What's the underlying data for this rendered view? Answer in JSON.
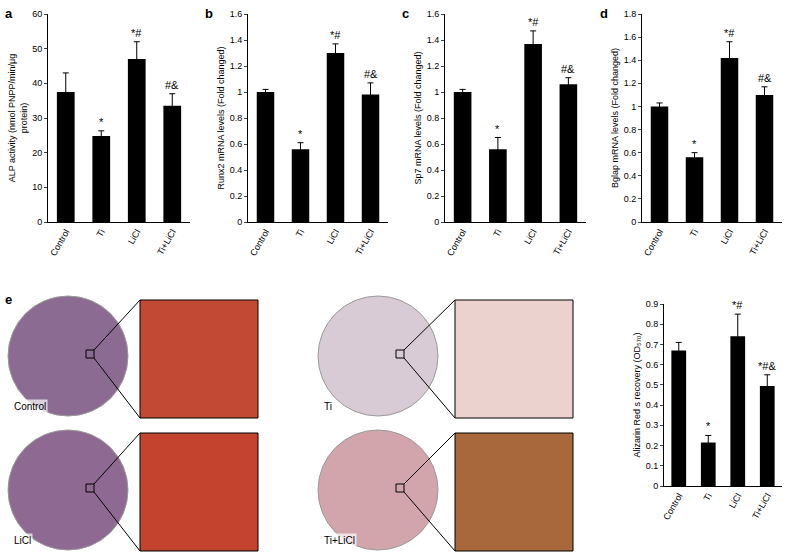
{
  "chart_data": [
    {
      "panel": "a",
      "type": "bar",
      "color": "#000000",
      "grid": false,
      "y_label_lines": [
        "ALP activity (nmol PNPP/min/μg",
        "protein)"
      ],
      "categories": [
        "Control",
        "Ti",
        "LiCl",
        "Ti+LiCl"
      ],
      "values": [
        37.5,
        24.8,
        47,
        33.5
      ],
      "errors": [
        5.5,
        1.5,
        5,
        3.5
      ],
      "significance": [
        null,
        "*",
        "*#",
        "#&"
      ],
      "ylim": [
        0,
        60
      ],
      "yticks": [
        0,
        10,
        20,
        30,
        40,
        50,
        60
      ]
    },
    {
      "panel": "b",
      "type": "bar",
      "color": "#000000",
      "grid": false,
      "y_label_lines": [
        "Runx2 mRNA levels (Fold changed)"
      ],
      "categories": [
        "Control",
        "Ti",
        "LiCl",
        "Ti+LiCl"
      ],
      "values": [
        1.0,
        0.56,
        1.3,
        0.98
      ],
      "errors": [
        0.02,
        0.05,
        0.07,
        0.09
      ],
      "significance": [
        null,
        "*",
        "*#",
        "#&"
      ],
      "ylim": [
        0,
        1.6
      ],
      "yticks": [
        0,
        0.2,
        0.4,
        0.6,
        0.8,
        1,
        1.2,
        1.4,
        1.6
      ]
    },
    {
      "panel": "c",
      "type": "bar",
      "color": "#000000",
      "grid": false,
      "y_label_lines": [
        "Sp7 mRNA levels (Fold changed)"
      ],
      "categories": [
        "Control",
        "Ti",
        "LiCl",
        "Ti+LiCl"
      ],
      "values": [
        1.0,
        0.56,
        1.37,
        1.06
      ],
      "errors": [
        0.02,
        0.09,
        0.1,
        0.05
      ],
      "significance": [
        null,
        "*",
        "*#",
        "#&"
      ],
      "ylim": [
        0,
        1.6
      ],
      "yticks": [
        0,
        0.2,
        0.4,
        0.6,
        0.8,
        1,
        1.2,
        1.4,
        1.6
      ]
    },
    {
      "panel": "d",
      "type": "bar",
      "color": "#000000",
      "grid": false,
      "y_label_lines": [
        "Bglap mRNA levels (Fold changed)"
      ],
      "categories": [
        "Control",
        "Ti",
        "LiCl",
        "Ti+LiCl"
      ],
      "values": [
        1.0,
        0.56,
        1.42,
        1.1
      ],
      "errors": [
        0.03,
        0.04,
        0.14,
        0.07
      ],
      "significance": [
        null,
        "*",
        "*#",
        "#&"
      ],
      "ylim": [
        0,
        1.8
      ],
      "yticks": [
        0,
        0.2,
        0.4,
        0.6,
        0.8,
        1,
        1.2,
        1.4,
        1.6,
        1.8
      ]
    },
    {
      "panel": "e",
      "type": "bar",
      "color": "#000000",
      "grid": false,
      "y_label_lines": [
        "Alizarin Red s recovery (OD₅₇₀)"
      ],
      "categories": [
        "Control",
        "Ti",
        "LiCl",
        "Ti+LiCl"
      ],
      "values": [
        0.67,
        0.215,
        0.74,
        0.495
      ],
      "errors": [
        0.04,
        0.035,
        0.11,
        0.055
      ],
      "significance": [
        null,
        "*",
        "*#",
        "*#&"
      ],
      "ylim": [
        0,
        0.9
      ],
      "yticks": [
        0,
        0.1,
        0.2,
        0.3,
        0.4,
        0.5,
        0.6,
        0.7,
        0.8,
        0.9
      ]
    }
  ],
  "photos": {
    "labels": [
      "Control",
      "Ti",
      "LiCl",
      "Ti+LiCl"
    ]
  }
}
